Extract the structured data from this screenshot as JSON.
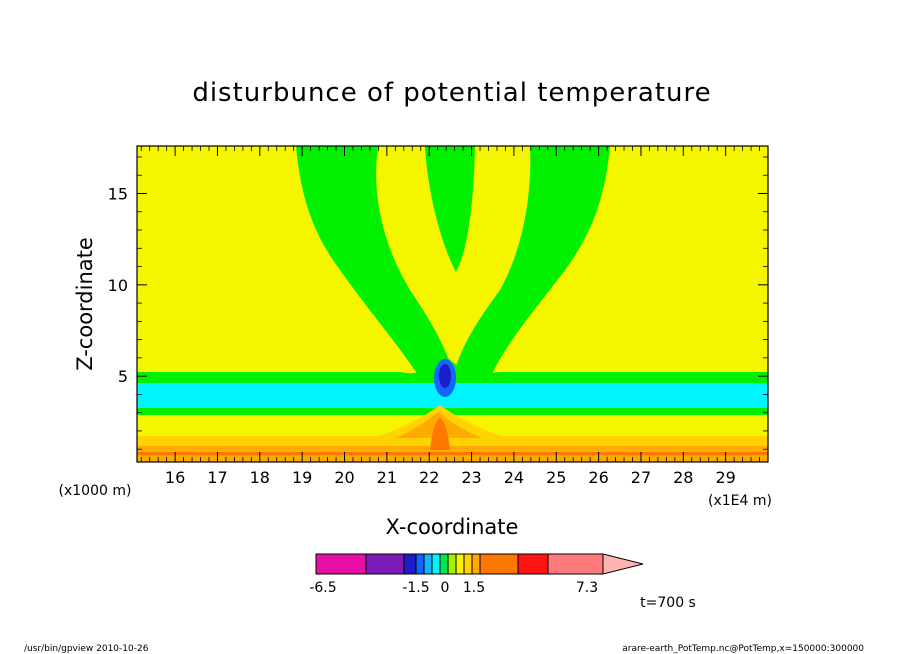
{
  "chart_data": {
    "type": "heatmap",
    "title": "disturbunce of potential temperature",
    "xlabel": "X-coordinate",
    "ylabel": "Z-coordinate",
    "x_unit": "(x1E4 m)",
    "y_unit": "(x1000 m)",
    "xlim": [
      15.1,
      30
    ],
    "ylim": [
      0.3,
      17.6
    ],
    "xticks": [
      "16",
      "17",
      "18",
      "19",
      "20",
      "21",
      "22",
      "23",
      "24",
      "25",
      "26",
      "27",
      "28",
      "29"
    ],
    "yticks": [
      "5",
      "10",
      "15"
    ],
    "colorbar": {
      "labels": [
        "-6.5",
        "-1.5",
        "0",
        "1.5",
        "7.3"
      ],
      "colors": [
        "#e60fa5",
        "#7c1ab5",
        "#1e1ec8",
        "#1464ff",
        "#14b4ff",
        "#00f5ff",
        "#00e650",
        "#a0f000",
        "#f5f500",
        "#ffd200",
        "#ffaa00",
        "#ff7800",
        "#ff1414",
        "#ff7a7a",
        "#ffb4b4"
      ]
    },
    "time_label": "t=700 s",
    "footer_left": "/usr/bin/gpview   2010-10-26",
    "footer_right": "arare-earth_PotTemp.nc@PotTemp,x=150000:300000"
  }
}
